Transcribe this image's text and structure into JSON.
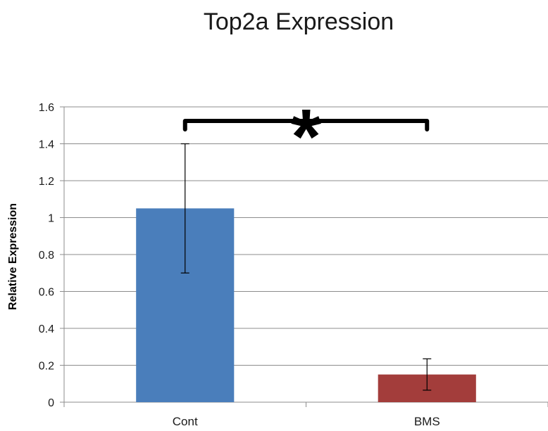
{
  "chart_data": {
    "type": "bar",
    "title": "Top2a Expression",
    "xlabel": "",
    "ylabel": "Relative Expression",
    "categories": [
      "Cont",
      "BMS"
    ],
    "values": [
      1.05,
      0.15
    ],
    "errors": [
      0.35,
      0.085
    ],
    "bar_colors": [
      "#4a7ebb",
      "#a33d3b"
    ],
    "ylim": [
      0,
      1.6
    ],
    "yticks": [
      0,
      0.2,
      0.4,
      0.6,
      0.8,
      1,
      1.2,
      1.4,
      1.6
    ],
    "ytick_labels": [
      "0",
      "0.2",
      "0.4",
      "0.6",
      "0.8",
      "1",
      "1.2",
      "1.4",
      "1.6"
    ],
    "grid": true,
    "legend": "none",
    "annotation": {
      "text": "*",
      "between": [
        "Cont",
        "BMS"
      ]
    }
  }
}
